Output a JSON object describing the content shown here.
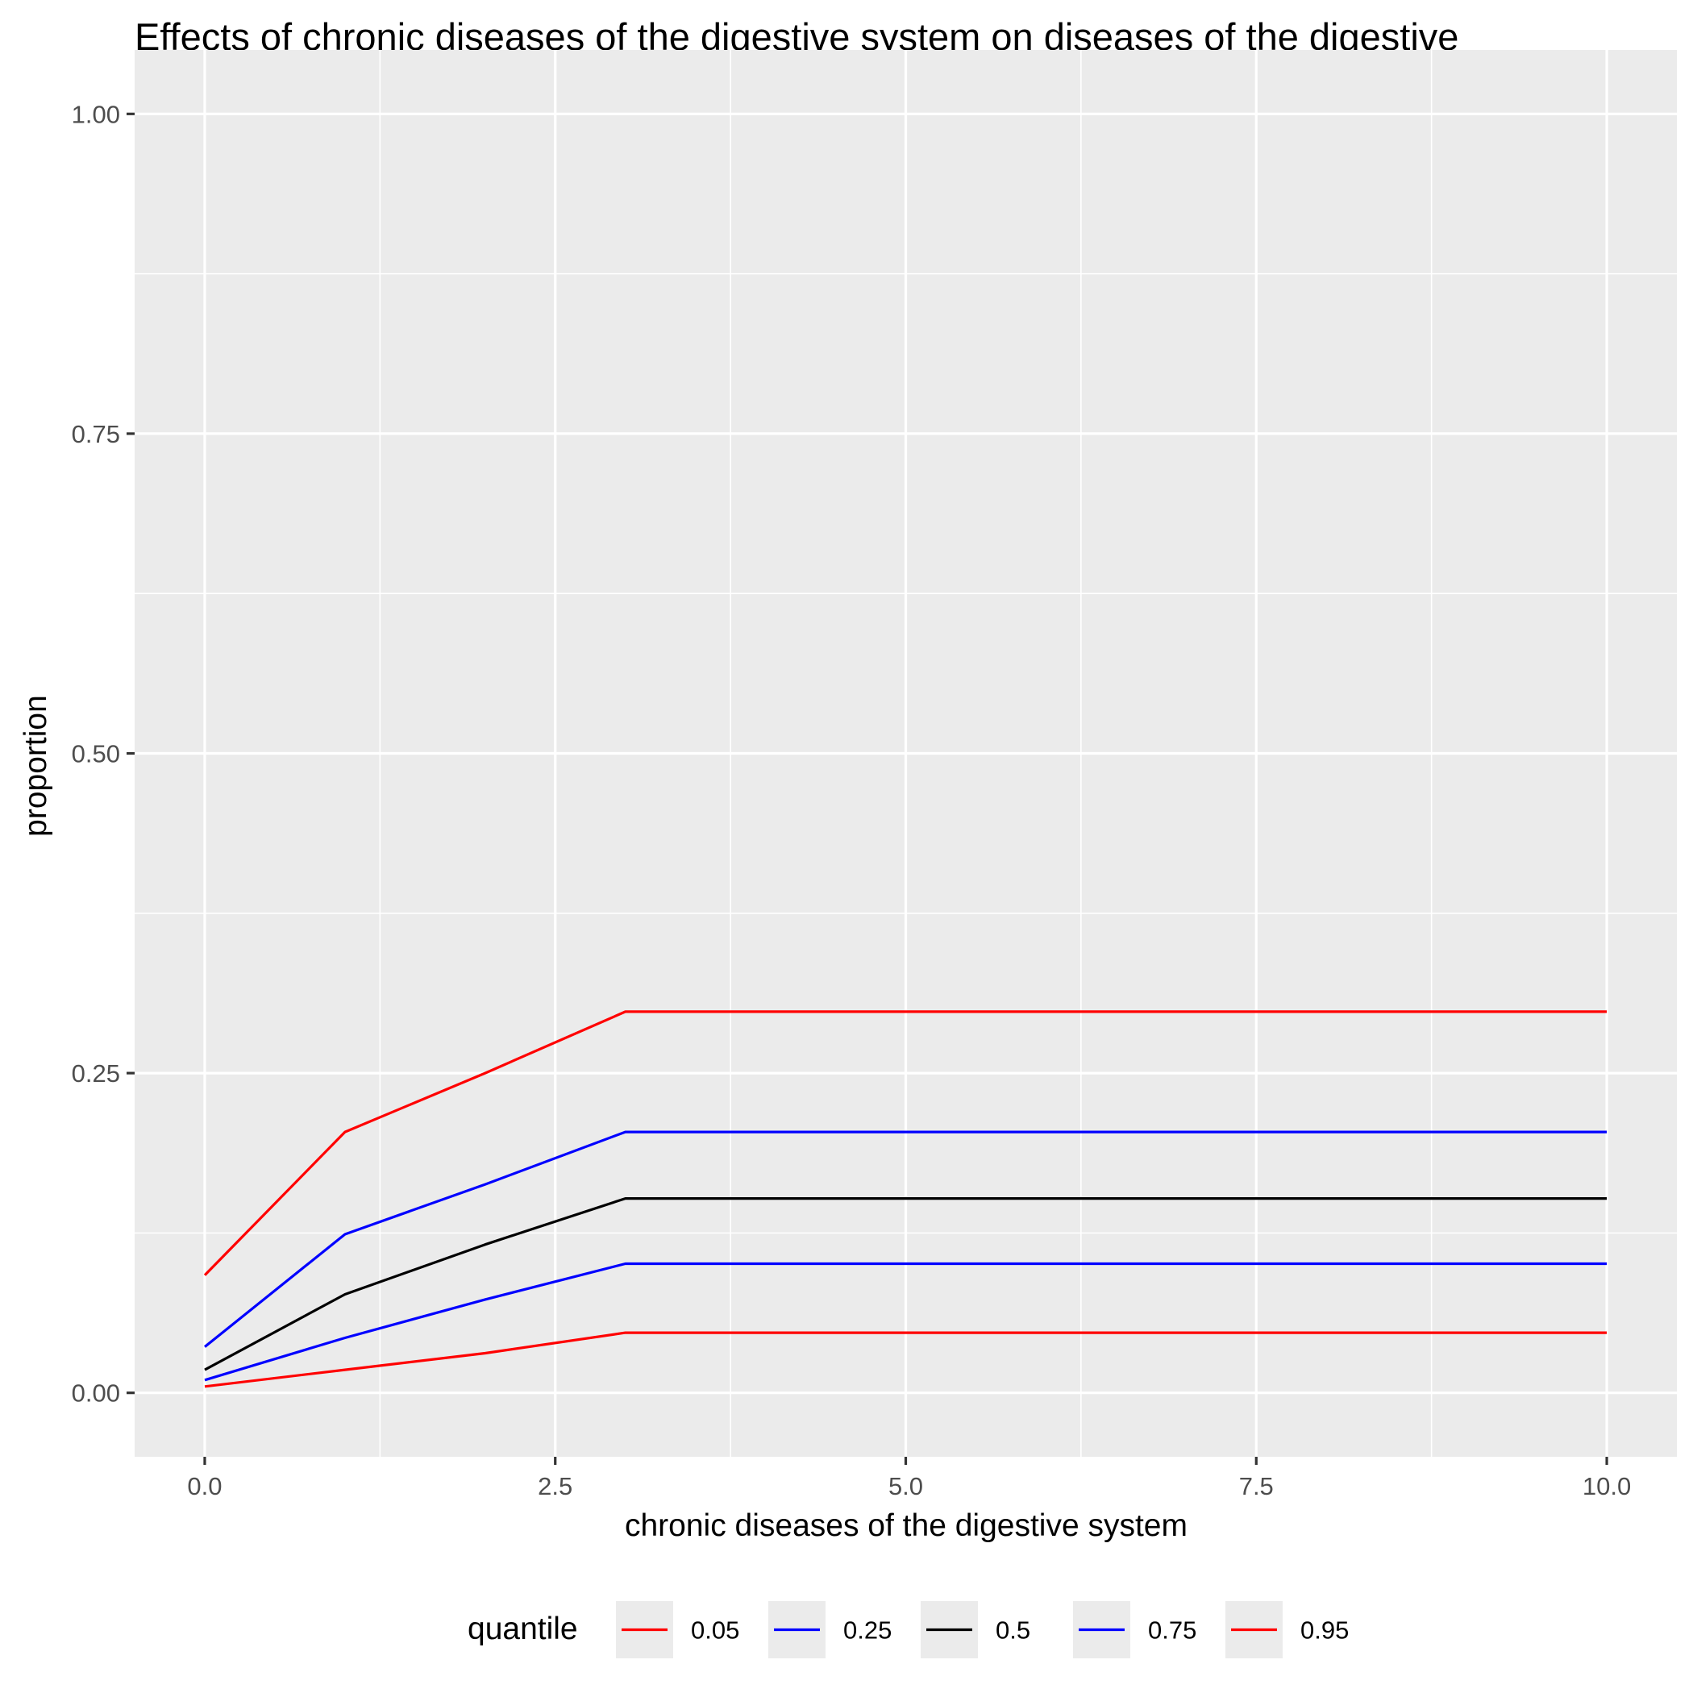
{
  "chart_data": {
    "type": "line",
    "title": "Effects of chronic diseases of the digestive system on diseases of the digestive",
    "xlabel": "chronic diseases of the digestive system",
    "ylabel": "proportion",
    "xlim": [
      -0.5,
      10.5
    ],
    "ylim": [
      -0.05,
      1.05
    ],
    "x_ticks": [
      0,
      2.5,
      5,
      7.5,
      10
    ],
    "x_tick_labels": [
      "0.0",
      "2.5",
      "5.0",
      "7.5",
      "10.0"
    ],
    "y_ticks": [
      0,
      0.25,
      0.5,
      0.75,
      1
    ],
    "y_tick_labels": [
      "0.00",
      "0.25",
      "0.50",
      "0.75",
      "1.00"
    ],
    "grid": true,
    "legend": {
      "title": "quantile",
      "position": "bottom"
    },
    "x": [
      0,
      1,
      2,
      3,
      10
    ],
    "series": [
      {
        "name": "0.05",
        "color": "#ff0000",
        "values": [
          0.005,
          0.018,
          0.031,
          0.047,
          0.047
        ]
      },
      {
        "name": "0.25",
        "color": "#0000ff",
        "values": [
          0.01,
          0.043,
          0.073,
          0.101,
          0.101
        ]
      },
      {
        "name": "0.5",
        "color": "#000000",
        "values": [
          0.018,
          0.077,
          0.116,
          0.152,
          0.152
        ]
      },
      {
        "name": "0.75",
        "color": "#0000ff",
        "values": [
          0.036,
          0.124,
          0.163,
          0.204,
          0.204
        ]
      },
      {
        "name": "0.95",
        "color": "#ff0000",
        "values": [
          0.092,
          0.204,
          0.25,
          0.298,
          0.298
        ]
      }
    ],
    "colors": {
      "panel_background": "#ebebeb",
      "gridline": "#ffffff",
      "tick_text": "#4d4d4d"
    }
  }
}
